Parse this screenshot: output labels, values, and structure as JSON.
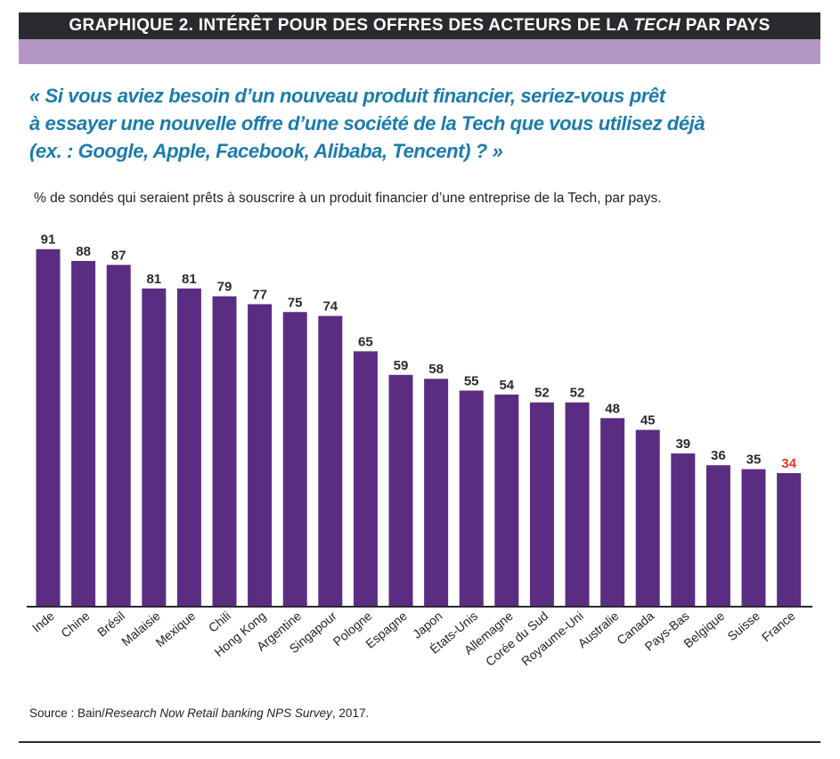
{
  "header": {
    "title_prefix": "GRAPHIQUE 2. INTÉRÊT POUR DES OFFRES DES ACTEURS DE LA ",
    "title_italic": "TECH",
    "title_suffix": " PAR PAYS"
  },
  "question": {
    "line1": "« Si vous aviez besoin d’un nouveau produit financier, seriez-vous prêt",
    "line2": "à essayer une nouvelle offre d’une société de la Tech que vous utilisez déjà",
    "line3": "(ex. : Google, Apple, Facebook, Alibaba, Tencent) ? »"
  },
  "subtitle": "% de sondés qui seraient prêts à souscrire à un produit financier d’une entreprise de la Tech, par pays.",
  "source": {
    "prefix": "Source : Bain/",
    "italic": "Research Now Retail banking NPS Survey",
    "suffix": ", 2017."
  },
  "colors": {
    "bar": "#5b2d82",
    "highlight_label": "#e8351f",
    "label": "#2b2a2e",
    "header_bg": "#2b2a2e",
    "lilac": "#b396c4",
    "question": "#1b7cab"
  },
  "chart_data": {
    "type": "bar",
    "categories": [
      "Inde",
      "Chine",
      "Brésil",
      "Malaisie",
      "Mexique",
      "Chili",
      "Hong Kong",
      "Argentine",
      "Singapour",
      "Pologne",
      "Espagne",
      "Japon",
      "États-Unis",
      "Allemagne",
      "Corée du Sud",
      "Royaume-Uni",
      "Australie",
      "Canada",
      "Pays-Bas",
      "Belgique",
      "Suisse",
      "France"
    ],
    "values": [
      91,
      88,
      87,
      81,
      81,
      79,
      77,
      75,
      74,
      65,
      59,
      58,
      55,
      54,
      52,
      52,
      48,
      45,
      39,
      36,
      35,
      34
    ],
    "highlight": "France",
    "ylim": [
      0,
      100
    ],
    "grid": false,
    "data_labels": true
  }
}
